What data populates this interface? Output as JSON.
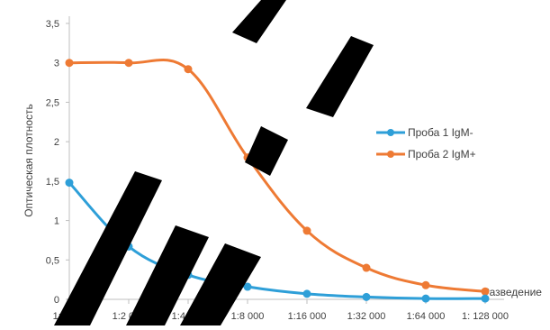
{
  "chart_data": {
    "type": "line",
    "title": "",
    "xlabel": "Разведение",
    "ylabel": "Оптическая плотность",
    "categories": [
      "1:1 000",
      "1:2 000",
      "1:4 000",
      "1:8 000",
      "1:16 000",
      "1:32 000",
      "1:64 000",
      "1: 128 000"
    ],
    "ylim": [
      0,
      3.5
    ],
    "y_ticks": [
      "0",
      "0,5",
      "1",
      "1,5",
      "2",
      "2,5",
      "3",
      "3,5"
    ],
    "grid": false,
    "legend_position": "right",
    "series": [
      {
        "name": "Проба 1 IgM-",
        "color": "#2e9fd8",
        "values": [
          1.48,
          0.67,
          0.31,
          0.16,
          0.07,
          0.03,
          0.01,
          0.01
        ]
      },
      {
        "name": "Проба 2 IgM+",
        "color": "#ee7a34",
        "values": [
          3.0,
          3.0,
          2.92,
          1.8,
          0.87,
          0.4,
          0.18,
          0.1
        ]
      }
    ],
    "watermark_color": "#000000"
  }
}
